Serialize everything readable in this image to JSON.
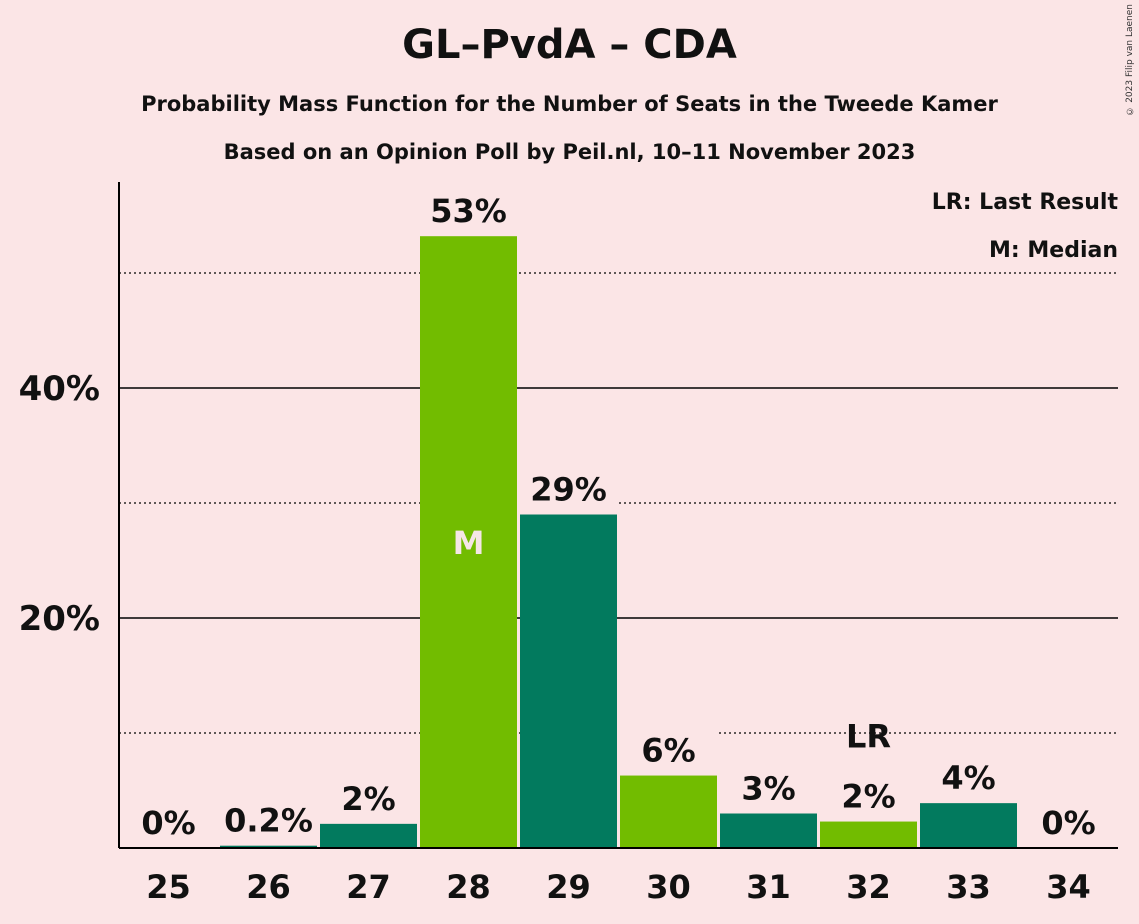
{
  "title": "GL–PvdA – CDA",
  "subtitle": "Probability Mass Function for the Number of Seats in the Tweede Kamer",
  "subtitle2": "Based on an Opinion Poll by Peil.nl, 10–11 November 2023",
  "copyright": "© 2023 Filip van Laenen",
  "legend": {
    "lr": "LR: Last Result",
    "m": "M: Median"
  },
  "colors": {
    "background": "#fbe5e6",
    "light_green": "#72bc00",
    "dark_green": "#027a5e"
  },
  "chart_data": {
    "type": "bar",
    "categories": [
      "25",
      "26",
      "27",
      "28",
      "29",
      "30",
      "31",
      "32",
      "33",
      "34"
    ],
    "values": [
      0,
      0.2,
      2.1,
      53.2,
      29.0,
      6.3,
      3.0,
      2.3,
      3.9,
      0
    ],
    "labels": [
      "0%",
      "0.2%",
      "2%",
      "53%",
      "29%",
      "6%",
      "3%",
      "2%",
      "4%",
      "0%"
    ],
    "bar_colors": [
      "light_green",
      "dark_green",
      "dark_green",
      "light_green",
      "dark_green",
      "light_green",
      "dark_green",
      "light_green",
      "dark_green",
      "light_green"
    ],
    "median_category": "28",
    "median_marker": "M",
    "last_result_category": "32",
    "last_result_marker": "LR",
    "yticks": [
      20,
      40
    ],
    "ytick_labels": [
      "20%",
      "40%"
    ],
    "minor_gridlines": [
      10,
      30,
      50
    ],
    "ylim": [
      0,
      58
    ],
    "legend_position": "top-right"
  }
}
